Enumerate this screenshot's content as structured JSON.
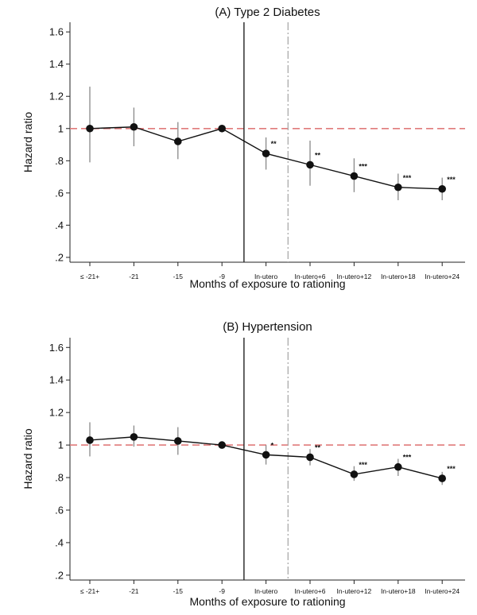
{
  "colors": {
    "line": "#111111",
    "ci": "#888888",
    "reference": "#e07b7b",
    "vline_solid": "#222222",
    "vline_dashdot": "#aaaaaa"
  },
  "chart_data": [
    {
      "type": "line",
      "title": "(A) Type 2 Diabetes",
      "xlabel": "Months of exposure to rationing",
      "ylabel": "Hazard ratio",
      "categories": [
        "≤ -21+",
        "-21",
        "-15",
        "-9",
        "In-utero",
        "In-utero+6",
        "In-utero+12",
        "In-utero+18",
        "In-utero+24"
      ],
      "values": [
        1.0,
        1.01,
        0.92,
        1.0,
        0.845,
        0.775,
        0.705,
        0.635,
        0.625
      ],
      "ci_low": [
        0.79,
        0.89,
        0.81,
        1.0,
        0.745,
        0.645,
        0.605,
        0.555,
        0.555
      ],
      "ci_high": [
        1.26,
        1.13,
        1.04,
        1.0,
        0.945,
        0.925,
        0.815,
        0.72,
        0.695
      ],
      "significance": [
        "",
        "",
        "",
        "",
        "**",
        "**",
        "***",
        "***",
        "***"
      ],
      "yticks": [
        ".2",
        ".4",
        ".6",
        ".8",
        "1",
        "1.2",
        "1.4",
        "1.6"
      ],
      "ylim": [
        0.17,
        1.66
      ],
      "reference_line": 1,
      "vertical_lines": [
        {
          "category_position": 3.5,
          "style": "solid"
        },
        {
          "category_position": 4.5,
          "style": "dash-dot"
        }
      ],
      "grid": false
    },
    {
      "type": "line",
      "title": "(B) Hypertension",
      "xlabel": "Months of exposure to rationing",
      "ylabel": "Hazard ratio",
      "categories": [
        "≤ -21+",
        "-21",
        "-15",
        "-9",
        "In-utero",
        "In-utero+6",
        "In-utero+12",
        "In-utero+18",
        "In-utero+24"
      ],
      "values": [
        1.03,
        1.05,
        1.025,
        1.0,
        0.94,
        0.925,
        0.82,
        0.865,
        0.795
      ],
      "ci_low": [
        0.93,
        0.99,
        0.94,
        1.0,
        0.88,
        0.875,
        0.78,
        0.81,
        0.755
      ],
      "ci_high": [
        1.14,
        1.12,
        1.11,
        1.0,
        1.0,
        0.975,
        0.87,
        0.915,
        0.835
      ],
      "significance": [
        "",
        "",
        "",
        "",
        "*",
        "**",
        "***",
        "***",
        "***"
      ],
      "yticks": [
        ".2",
        ".4",
        ".6",
        ".8",
        "1",
        "1.2",
        "1.4",
        "1.6"
      ],
      "ylim": [
        0.17,
        1.66
      ],
      "reference_line": 1,
      "vertical_lines": [
        {
          "category_position": 3.5,
          "style": "solid"
        },
        {
          "category_position": 4.5,
          "style": "dash-dot"
        }
      ],
      "grid": false
    }
  ]
}
